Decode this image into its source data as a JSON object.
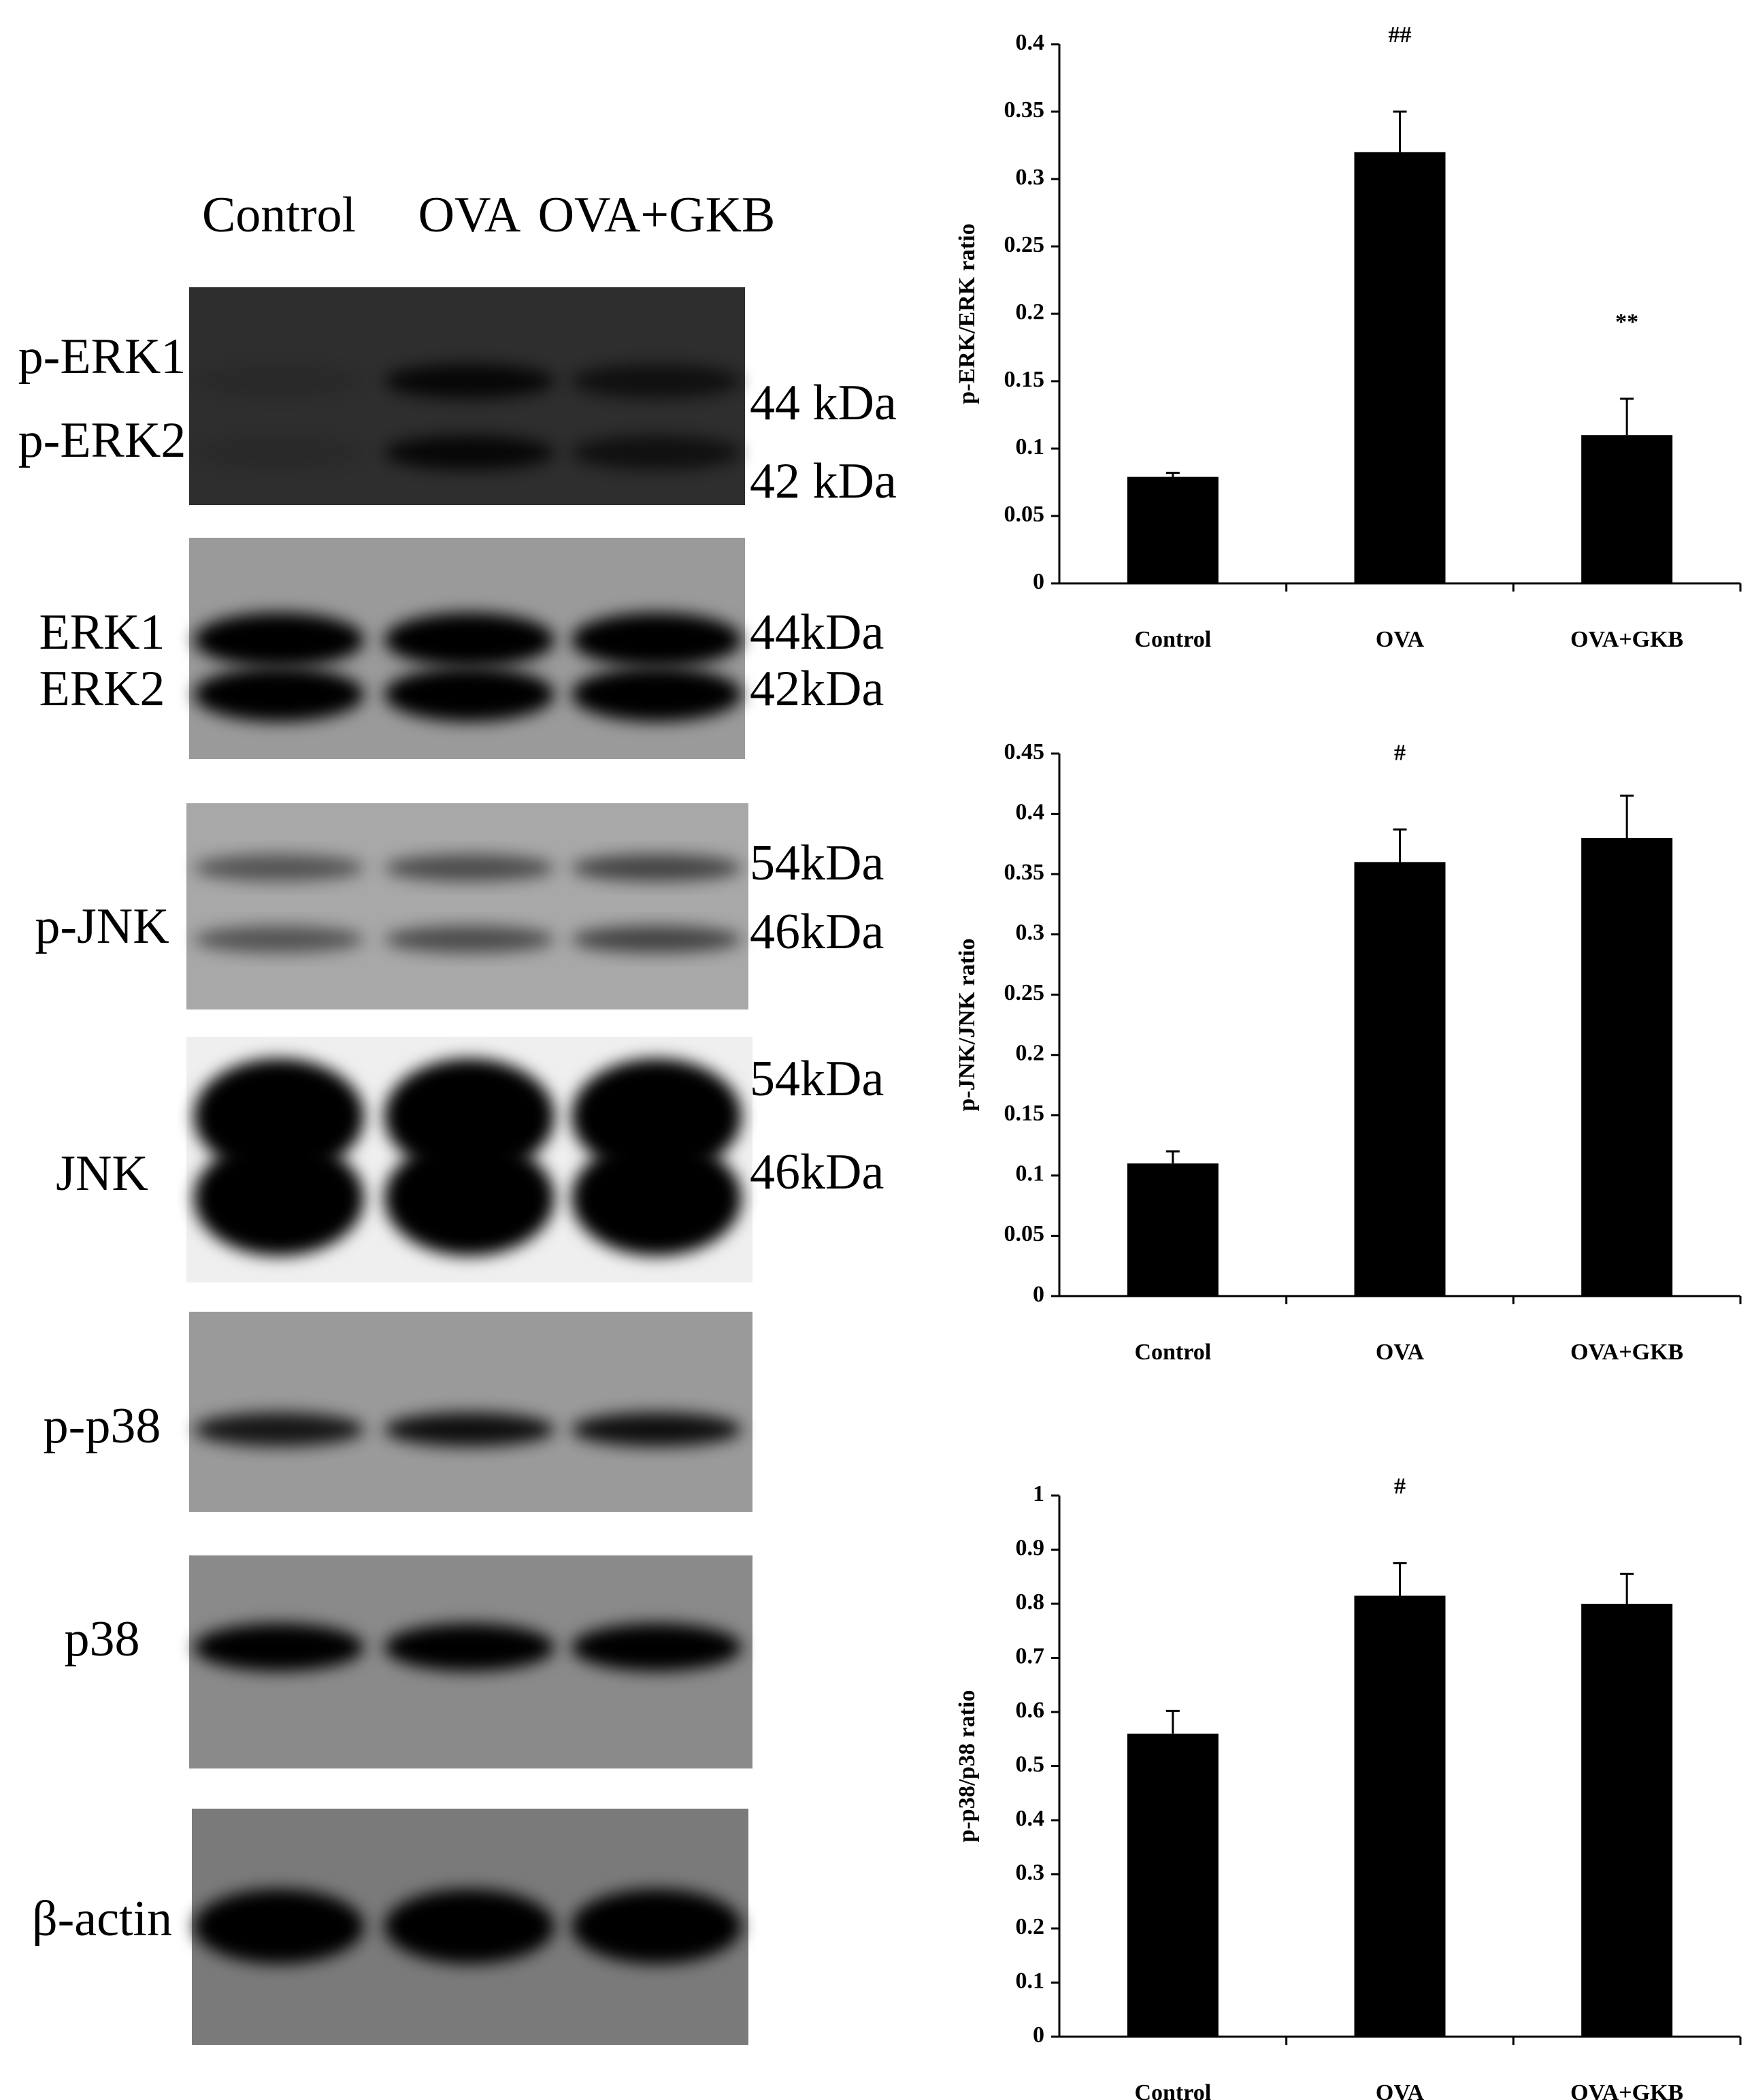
{
  "blots": {
    "lanes": [
      "Control",
      "OVA",
      "OVA+GKB"
    ],
    "rows": [
      {
        "labels": [
          "p-ERK1",
          "p-ERK2"
        ],
        "sizes": [
          "44 kDa",
          "42 kDa"
        ]
      },
      {
        "labels": [
          "ERK1",
          "ERK2"
        ],
        "sizes": [
          "44kDa",
          "42kDa"
        ]
      },
      {
        "labels": [
          "p-JNK"
        ],
        "sizes": [
          "54kDa",
          "46kDa"
        ]
      },
      {
        "labels": [
          "JNK"
        ],
        "sizes": [
          "54kDa",
          "46kDa"
        ]
      },
      {
        "labels": [
          "p-p38"
        ]
      },
      {
        "labels": [
          "p38"
        ]
      },
      {
        "labels": [
          "β-actin"
        ]
      }
    ]
  },
  "chart_data": [
    {
      "type": "bar",
      "ylabel": "p-ERK/ERK ratio",
      "categories": [
        "Control",
        "OVA",
        "OVA+GKB"
      ],
      "values": [
        0.079,
        0.32,
        0.11
      ],
      "errors": [
        0.003,
        0.03,
        0.027
      ],
      "color": "#000000",
      "ylim": [
        0,
        0.4
      ],
      "yticks": [
        0,
        0.05,
        0.1,
        0.15,
        0.2,
        0.25,
        0.3,
        0.35,
        0.4
      ],
      "annotations": [
        {
          "x": 1,
          "text": "##"
        },
        {
          "x": 2,
          "text": "**"
        }
      ]
    },
    {
      "type": "bar",
      "ylabel": "p-JNK/JNK ratio",
      "categories": [
        "Control",
        "OVA",
        "OVA+GKB"
      ],
      "values": [
        0.11,
        0.36,
        0.38
      ],
      "errors": [
        0.01,
        0.027,
        0.035
      ],
      "color": "#000000",
      "ylim": [
        0,
        0.45
      ],
      "yticks": [
        0,
        0.05,
        0.1,
        0.15,
        0.2,
        0.25,
        0.3,
        0.35,
        0.4,
        0.45
      ],
      "annotations": [
        {
          "x": 1,
          "text": "#"
        }
      ]
    },
    {
      "type": "bar",
      "ylabel": "p-p38/p38 ratio",
      "categories": [
        "Control",
        "OVA",
        "OVA+GKB"
      ],
      "values": [
        0.56,
        0.815,
        0.8
      ],
      "errors": [
        0.042,
        0.06,
        0.055
      ],
      "color": "#000000",
      "ylim": [
        0,
        1
      ],
      "yticks": [
        0,
        0.1,
        0.2,
        0.3,
        0.4,
        0.5,
        0.6,
        0.7,
        0.8,
        0.9,
        1
      ],
      "annotations": [
        {
          "x": 1,
          "text": "#"
        }
      ]
    }
  ]
}
